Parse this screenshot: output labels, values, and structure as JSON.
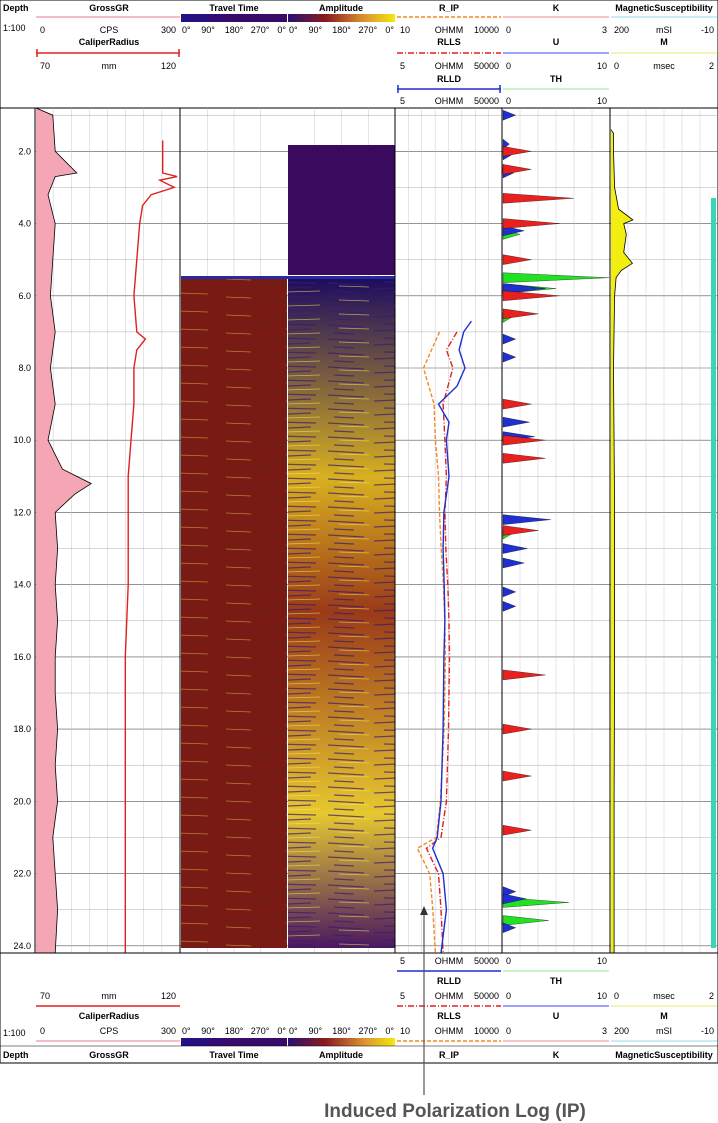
{
  "header": {
    "depth_label": "Depth",
    "scale_label": "1:100",
    "grossgr": {
      "name": "GrossGR",
      "min": "0",
      "unit": "CPS",
      "max": "300",
      "color": "#f4a6b4"
    },
    "caliper": {
      "name": "CaliperRadius",
      "min": "70",
      "unit": "mm",
      "max": "120",
      "color": "#e02020"
    },
    "travel_time": {
      "name": "Travel Time",
      "ticks": [
        "0°",
        "90°",
        "180°",
        "270°",
        "0°"
      ]
    },
    "amplitude": {
      "name": "Amplitude",
      "ticks": [
        "0°",
        "90°",
        "180°",
        "270°",
        "0°"
      ]
    },
    "r_ip": {
      "name": "R_IP",
      "min": "10",
      "unit": "OHMM",
      "max": "10000",
      "color": "#f08a24"
    },
    "rlls": {
      "name": "RLLS",
      "min": "5",
      "unit": "OHMM",
      "max": "50000",
      "color": "#e02020"
    },
    "rlld": {
      "name": "RLLD",
      "min": "5",
      "unit": "OHMM",
      "max": "50000",
      "color": "#1f2fd0"
    },
    "k": {
      "name": "K",
      "min": "0",
      "max": "3",
      "color": "#f6b0b0"
    },
    "u": {
      "name": "U",
      "min": "0",
      "max": "10",
      "color": "#8080ff"
    },
    "th": {
      "name": "TH",
      "min": "0",
      "max": "10",
      "color": "#b8f0b8"
    },
    "magsus": {
      "name": "MagneticSusceptibility",
      "min": "200",
      "unit": "mSI",
      "max": "-10",
      "color": "#b8e8f0"
    },
    "m": {
      "name": "M",
      "min": "0",
      "unit": "msec",
      "max": "2",
      "color": "#f0f0a0"
    }
  },
  "caption": "Induced Polarization Log (IP)",
  "chart_data": {
    "type": "line",
    "title": "",
    "depth_range": [
      0.8,
      24.2
    ],
    "depth_ticks": [
      "2.0",
      "4.0",
      "6.0",
      "8.0",
      "10.0",
      "12.0",
      "14.0",
      "16.0",
      "18.0",
      "20.0",
      "22.0",
      "24.0"
    ],
    "series": [
      {
        "name": "GrossGR",
        "unit": "CPS",
        "range": [
          0,
          300
        ],
        "color": "#f4a6b4",
        "points": [
          [
            0.8,
            0
          ],
          [
            1.0,
            35
          ],
          [
            2.0,
            40
          ],
          [
            2.6,
            85
          ],
          [
            2.7,
            40
          ],
          [
            3.2,
            25
          ],
          [
            4.0,
            40
          ],
          [
            5.0,
            35
          ],
          [
            6.0,
            30
          ],
          [
            7.0,
            40
          ],
          [
            8.0,
            30
          ],
          [
            9.0,
            40
          ],
          [
            10.0,
            25
          ],
          [
            10.8,
            55
          ],
          [
            11.2,
            115
          ],
          [
            11.5,
            80
          ],
          [
            12.0,
            40
          ],
          [
            13.0,
            45
          ],
          [
            14.0,
            40
          ],
          [
            15.0,
            45
          ],
          [
            16.0,
            40
          ],
          [
            17.0,
            40
          ],
          [
            18.0,
            45
          ],
          [
            19.0,
            40
          ],
          [
            20.0,
            45
          ],
          [
            21.0,
            35
          ],
          [
            22.0,
            40
          ],
          [
            23.0,
            45
          ],
          [
            24.2,
            40
          ]
        ]
      },
      {
        "name": "CaliperRadius",
        "unit": "mm",
        "range": [
          70,
          120
        ],
        "color": "#e02020",
        "points": [
          [
            1.7,
            114
          ],
          [
            2.6,
            114
          ],
          [
            2.7,
            119
          ],
          [
            2.8,
            113
          ],
          [
            3.0,
            118
          ],
          [
            3.2,
            110
          ],
          [
            3.5,
            107
          ],
          [
            4.0,
            106
          ],
          [
            5.0,
            105
          ],
          [
            6.0,
            104
          ],
          [
            7.0,
            105
          ],
          [
            7.2,
            108
          ],
          [
            7.5,
            105
          ],
          [
            8.0,
            104
          ],
          [
            9.0,
            104
          ],
          [
            10.0,
            103
          ],
          [
            11.0,
            102
          ],
          [
            12.0,
            102
          ],
          [
            13.0,
            102
          ],
          [
            14.0,
            102
          ],
          [
            16.0,
            101
          ],
          [
            18.0,
            101
          ],
          [
            20.0,
            101
          ],
          [
            22.0,
            101
          ],
          [
            24.0,
            101
          ],
          [
            24.2,
            101
          ]
        ]
      },
      {
        "name": "R_IP",
        "unit": "OHMM",
        "range": [
          10,
          10000
        ],
        "color": "#f08a24",
        "points": [
          [
            7.0,
            170
          ],
          [
            8.0,
            60
          ],
          [
            9.0,
            120
          ],
          [
            10.0,
            130
          ],
          [
            11.0,
            160
          ],
          [
            12.0,
            170
          ],
          [
            13.0,
            190
          ],
          [
            14.0,
            220
          ],
          [
            15.0,
            240
          ],
          [
            16.0,
            250
          ],
          [
            18.0,
            230
          ],
          [
            20.0,
            180
          ],
          [
            21.0,
            140
          ],
          [
            21.3,
            40
          ],
          [
            22.0,
            90
          ],
          [
            23.0,
            110
          ],
          [
            24.2,
            130
          ]
        ]
      },
      {
        "name": "RLLS",
        "unit": "OHMM",
        "range": [
          5,
          50000
        ],
        "color": "#e02020",
        "points": [
          [
            7.0,
            1000
          ],
          [
            7.5,
            400
          ],
          [
            8.0,
            700
          ],
          [
            9.0,
            300
          ],
          [
            10.0,
            350
          ],
          [
            11.0,
            400
          ],
          [
            12.0,
            350
          ],
          [
            13.0,
            380
          ],
          [
            14.0,
            450
          ],
          [
            15.0,
            500
          ],
          [
            16.0,
            520
          ],
          [
            18.0,
            480
          ],
          [
            20.0,
            400
          ],
          [
            21.0,
            250
          ],
          [
            21.3,
            70
          ],
          [
            22.0,
            200
          ],
          [
            23.0,
            250
          ],
          [
            24.2,
            300
          ]
        ]
      },
      {
        "name": "RLLD",
        "unit": "OHMM",
        "range": [
          5,
          50000
        ],
        "color": "#1f2fd0",
        "points": [
          [
            6.7,
            3500
          ],
          [
            7.0,
            1800
          ],
          [
            7.5,
            1200
          ],
          [
            8.0,
            2000
          ],
          [
            8.5,
            1000
          ],
          [
            9.0,
            200
          ],
          [
            9.5,
            500
          ],
          [
            10.0,
            400
          ],
          [
            11.0,
            500
          ],
          [
            12.0,
            320
          ],
          [
            13.0,
            300
          ],
          [
            14.0,
            330
          ],
          [
            15.0,
            350
          ],
          [
            16.0,
            320
          ],
          [
            18.0,
            300
          ],
          [
            20.0,
            250
          ],
          [
            21.0,
            180
          ],
          [
            21.3,
            120
          ],
          [
            22.0,
            300
          ],
          [
            23.0,
            400
          ],
          [
            24.2,
            250
          ]
        ]
      },
      {
        "name": "MagneticSusceptibility",
        "unit": "mSI",
        "range": [
          200,
          -10
        ],
        "color": "#f2ee10",
        "points": [
          [
            1.4,
            200
          ],
          [
            1.5,
            195
          ],
          [
            2.0,
            195
          ],
          [
            3.0,
            193
          ],
          [
            3.6,
            185
          ],
          [
            3.9,
            157
          ],
          [
            4.0,
            175
          ],
          [
            4.3,
            170
          ],
          [
            4.8,
            175
          ],
          [
            5.1,
            158
          ],
          [
            5.3,
            180
          ],
          [
            5.5,
            190
          ],
          [
            6.0,
            193
          ],
          [
            8.0,
            195
          ],
          [
            12.0,
            193
          ],
          [
            16.0,
            193
          ],
          [
            20.0,
            194
          ],
          [
            24.2,
            194
          ]
        ]
      }
    ],
    "spectral_bars": {
      "K": {
        "color": "#e82020",
        "blocks": [
          [
            2.0,
            0.8
          ],
          [
            2.5,
            0.8
          ],
          [
            3.3,
            2.0
          ],
          [
            4.0,
            1.6
          ],
          [
            5.0,
            0.8
          ],
          [
            6.0,
            1.6
          ],
          [
            6.5,
            1.0
          ],
          [
            9.0,
            0.8
          ],
          [
            10.0,
            1.2
          ],
          [
            10.5,
            1.2
          ],
          [
            12.5,
            1.0
          ],
          [
            16.5,
            1.2
          ],
          [
            18.0,
            0.8
          ],
          [
            19.3,
            0.8
          ],
          [
            20.8,
            0.8
          ]
        ]
      },
      "U": {
        "color": "#1f2fd0",
        "blocks": [
          [
            1.0,
            1.2
          ],
          [
            1.8,
            0.6
          ],
          [
            2.1,
            0.8
          ],
          [
            2.6,
            1.0
          ],
          [
            4.2,
            2.0
          ],
          [
            5.8,
            4.0
          ],
          [
            7.2,
            1.2
          ],
          [
            7.7,
            1.2
          ],
          [
            9.5,
            2.5
          ],
          [
            9.9,
            3.0
          ],
          [
            12.2,
            4.5
          ],
          [
            13.0,
            2.3
          ],
          [
            13.4,
            2.0
          ],
          [
            14.2,
            1.2
          ],
          [
            14.6,
            1.2
          ],
          [
            22.5,
            1.2
          ],
          [
            22.7,
            2.2
          ],
          [
            23.5,
            1.2
          ]
        ]
      },
      "TH": {
        "color": "#22e022",
        "blocks": [
          [
            2.5,
            1.2
          ],
          [
            4.3,
            1.6
          ],
          [
            5.5,
            10.0
          ],
          [
            5.8,
            5.0
          ],
          [
            6.6,
            0.8
          ],
          [
            12.6,
            0.8
          ],
          [
            22.8,
            6.2
          ],
          [
            23.3,
            4.3
          ]
        ]
      }
    }
  }
}
